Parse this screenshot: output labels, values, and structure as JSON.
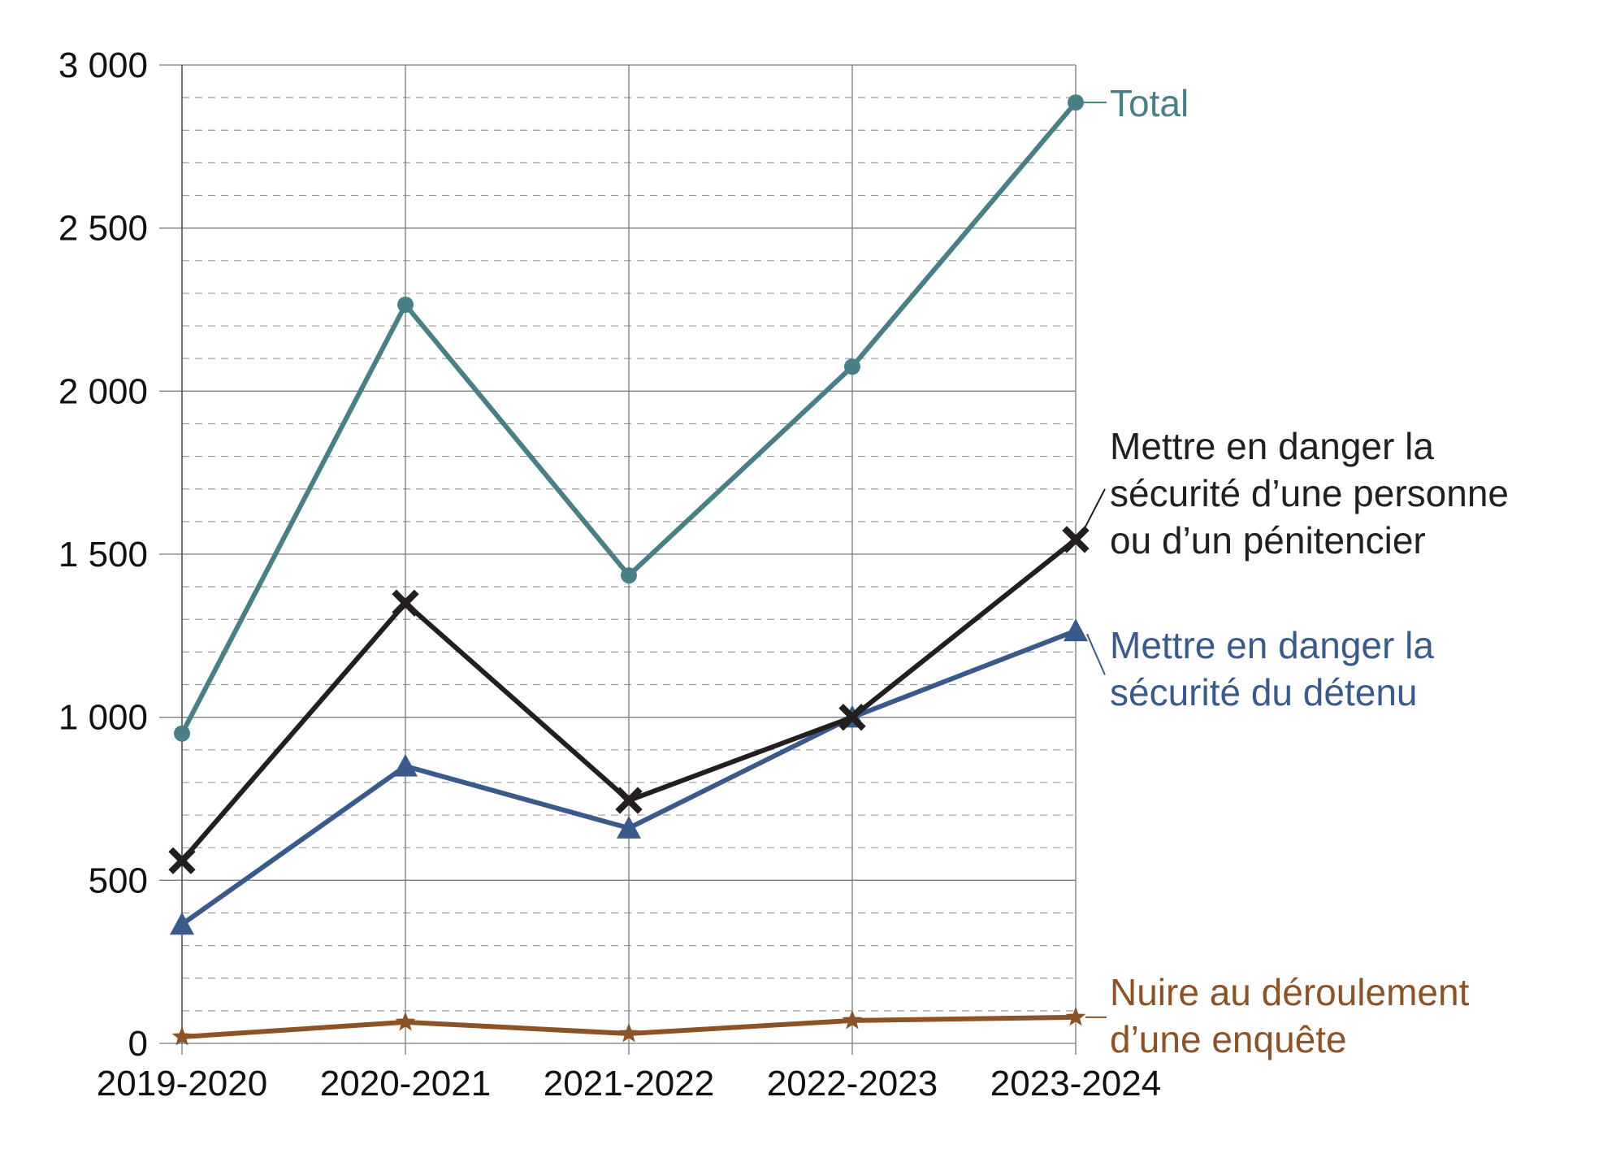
{
  "chart_data": {
    "type": "line",
    "title": "",
    "xlabel": "",
    "ylabel": "",
    "categories": [
      "2019-2020",
      "2020-2021",
      "2021-2022",
      "2022-2023",
      "2023-2024"
    ],
    "ylim": [
      0,
      3000
    ],
    "yticks": [
      0,
      500,
      1000,
      1500,
      2000,
      2500,
      3000
    ],
    "ytick_labels": [
      "0",
      "500",
      "1 000",
      "1 500",
      "2 000",
      "2 500",
      "3 000"
    ],
    "grid": true,
    "minor_grid": "dashed",
    "legend": "direct labels at right end of each line",
    "series": [
      {
        "id": "total",
        "name": "Total",
        "label_lines": [
          "Total"
        ],
        "color": "#4a7f86",
        "marker": "circle",
        "values": [
          950,
          2265,
          1435,
          2075,
          2885
        ]
      },
      {
        "id": "personne",
        "name": "Mettre en danger la sécurité d’une personne ou d’un pénitencier",
        "label_lines": [
          "Mettre en danger la",
          "sécurité d’une personne",
          "ou d’un pénitencier"
        ],
        "color": "#231f20",
        "marker": "cross",
        "values": [
          560,
          1350,
          745,
          1000,
          1545
        ]
      },
      {
        "id": "detenu",
        "name": "Mettre en danger la sécurité du détenu",
        "label_lines": [
          "Mettre en danger la",
          "sécurité du détenu"
        ],
        "color": "#3a5a8c",
        "marker": "triangle",
        "values": [
          365,
          850,
          660,
          1000,
          1265
        ]
      },
      {
        "id": "enquete",
        "name": "Nuire au déroulement d’une enquête",
        "label_lines": [
          "Nuire au déroulement",
          "d’une enquête"
        ],
        "color": "#8c5228",
        "marker": "star",
        "values": [
          20,
          65,
          30,
          70,
          80
        ]
      }
    ]
  }
}
